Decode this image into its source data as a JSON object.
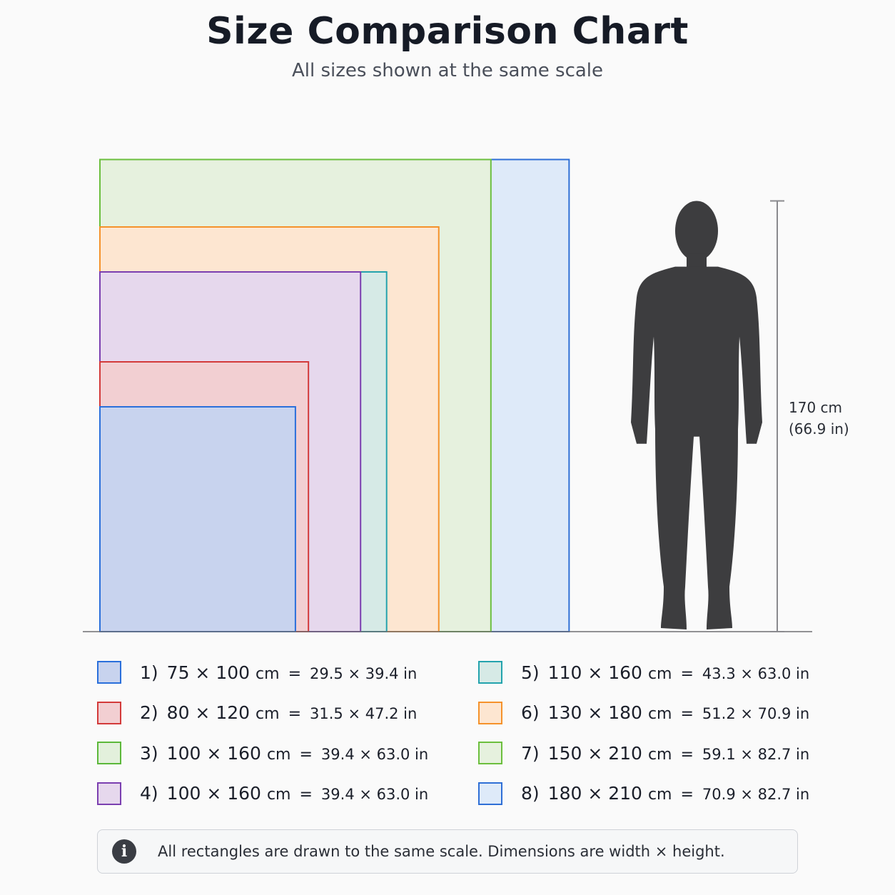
{
  "header": {
    "title": "Size Comparison Chart",
    "subtitle": "All sizes shown at the same scale"
  },
  "chart_data": {
    "type": "size-comparison",
    "title": "Size Comparison Chart",
    "subtitle": "All sizes shown at the same scale",
    "units": "cm",
    "items": [
      {
        "label": "1)",
        "width_cm": 75,
        "height_cm": 100,
        "width_in": 29.5,
        "height_in": 39.4,
        "stroke": "#2a6fdb",
        "fill": "#c8d3ee"
      },
      {
        "label": "2)",
        "width_cm": 80,
        "height_cm": 120,
        "width_in": 31.5,
        "height_in": 47.2,
        "stroke": "#d33a3a",
        "fill": "#f2cfd2"
      },
      {
        "label": "3)",
        "width_cm": 100,
        "height_cm": 160,
        "width_in": 39.4,
        "height_in": 63.0,
        "stroke": "#5cb83a",
        "fill": "#e3f0dc"
      },
      {
        "label": "4)",
        "width_cm": 100,
        "height_cm": 160,
        "width_in": 39.4,
        "height_in": 63.0,
        "stroke": "#7b3fb0",
        "fill": "#e6d8ed"
      },
      {
        "label": "5)",
        "width_cm": 110,
        "height_cm": 160,
        "width_in": 43.3,
        "height_in": 63.0,
        "stroke": "#23a3ad",
        "fill": "#d6eae6"
      },
      {
        "label": "6)",
        "width_cm": 130,
        "height_cm": 180,
        "width_in": 51.2,
        "height_in": 70.9,
        "stroke": "#f5922b",
        "fill": "#fde6d1"
      },
      {
        "label": "7)",
        "width_cm": 150,
        "height_cm": 210,
        "width_in": 59.1,
        "height_in": 82.7,
        "stroke": "#6cbf3e",
        "fill": "#e6f1de"
      },
      {
        "label": "8)",
        "width_cm": 180,
        "height_cm": 210,
        "width_in": 70.9,
        "height_in": 82.7,
        "stroke": "#2f6fd6",
        "fill": "#deeaf9"
      }
    ],
    "human": {
      "height_cm": 170,
      "label_cm": "170 cm",
      "label_in": "(66.9 in)",
      "color": "#3d3d3f"
    },
    "legend": [
      {
        "num": "1)",
        "dims": "75 × 100",
        "unit": "cm",
        "inches": "29.5 × 39.4 in"
      },
      {
        "num": "2)",
        "dims": "80 × 120",
        "unit": "cm",
        "inches": "31.5 × 47.2 in"
      },
      {
        "num": "3)",
        "dims": "100 × 160",
        "unit": "cm",
        "inches": "39.4 × 63.0 in"
      },
      {
        "num": "4)",
        "dims": "100 × 160",
        "unit": "cm",
        "inches": "39.4 × 63.0 in"
      },
      {
        "num": "5)",
        "dims": "110 × 160",
        "unit": "cm",
        "inches": "43.3 × 63.0 in"
      },
      {
        "num": "6)",
        "dims": "130 × 180",
        "unit": "cm",
        "inches": "51.2 × 70.9 in"
      },
      {
        "num": "7)",
        "dims": "150 × 210",
        "unit": "cm",
        "inches": "59.1 × 82.7 in"
      },
      {
        "num": "8)",
        "dims": "180 × 210",
        "unit": "cm",
        "inches": "70.9 × 82.7 in"
      }
    ]
  },
  "note": {
    "icon": "info-icon",
    "icon_glyph": "i",
    "text": "All rectangles are drawn to the same scale. Dimensions are width × height."
  }
}
